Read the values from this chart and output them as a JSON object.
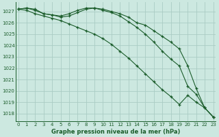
{
  "bg_color": "#cce8e0",
  "grid_color": "#aaccc4",
  "line_color": "#1a5c2a",
  "title": "Graphe pression niveau de la mer (hPa)",
  "xlim": [
    -0.3,
    23.3
  ],
  "ylim": [
    1017.3,
    1027.8
  ],
  "yticks": [
    1018,
    1019,
    1020,
    1021,
    1022,
    1023,
    1024,
    1025,
    1026,
    1027
  ],
  "xticks": [
    0,
    1,
    2,
    3,
    4,
    5,
    6,
    7,
    8,
    9,
    10,
    11,
    12,
    13,
    14,
    15,
    16,
    17,
    18,
    19,
    20,
    21,
    22,
    23
  ],
  "line1": [
    1027.2,
    1027.3,
    1027.2,
    1026.8,
    1026.7,
    1026.6,
    1026.8,
    1027.1,
    1027.3,
    1027.3,
    1027.2,
    1027.0,
    1026.8,
    1026.5,
    1026.0,
    1025.8,
    1025.3,
    1024.8,
    1024.3,
    1023.7,
    1022.2,
    1020.2,
    1018.5,
    1017.7
  ],
  "line2": [
    1027.2,
    1027.3,
    1027.1,
    1026.8,
    1026.7,
    1026.5,
    1026.6,
    1026.9,
    1027.2,
    1027.3,
    1027.1,
    1026.9,
    1026.6,
    1026.1,
    1025.6,
    1025.0,
    1024.3,
    1023.5,
    1022.8,
    1022.2,
    1020.4,
    1019.7,
    1018.5,
    1017.7
  ],
  "line3": [
    1027.2,
    1027.1,
    1026.8,
    1026.6,
    1026.4,
    1026.2,
    1025.9,
    1025.6,
    1025.3,
    1025.0,
    1024.6,
    1024.1,
    1023.5,
    1022.9,
    1022.2,
    1021.5,
    1020.8,
    1020.1,
    1019.5,
    1018.8,
    1019.6,
    1019.0,
    1018.5,
    1017.7
  ]
}
